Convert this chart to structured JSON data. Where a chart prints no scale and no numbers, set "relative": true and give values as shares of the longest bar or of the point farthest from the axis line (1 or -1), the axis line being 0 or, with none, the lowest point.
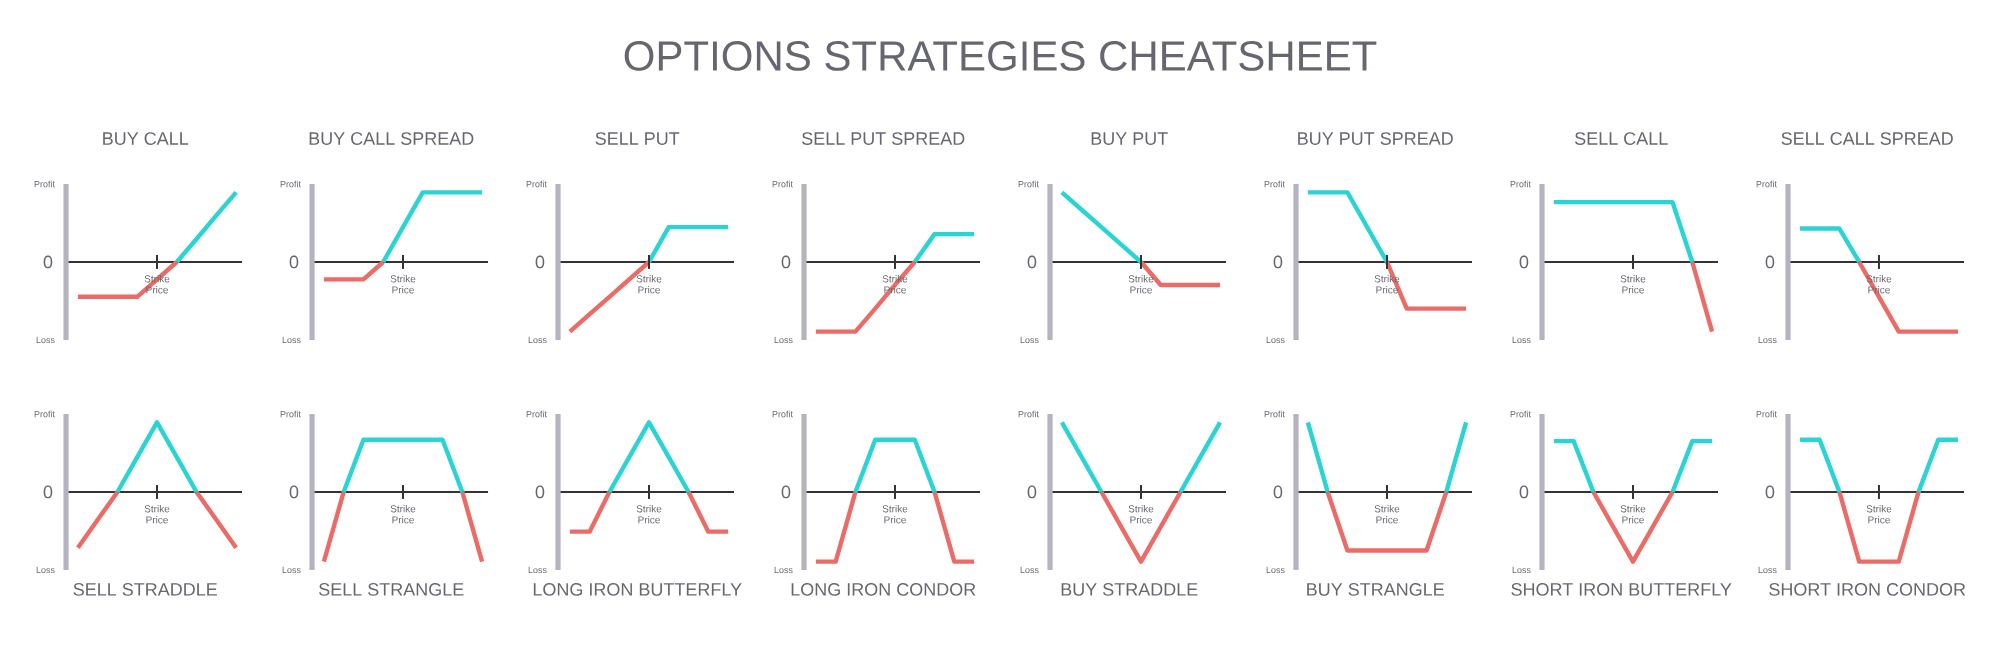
{
  "chart_data": [
    {
      "type": "other",
      "title": "OPTIONS STRATEGIES CHEATSHEET"
    },
    {
      "type": "line",
      "title": "BUY CALL",
      "relative": true,
      "categories": [
        null,
        null,
        null,
        null,
        null,
        null,
        null,
        null,
        null
      ],
      "annotations": [
        "Profit",
        "Loss",
        "0",
        "Strike Price"
      ],
      "series": [
        {
          "color": "#eb6b66",
          "values": [
            -0.5,
            -0.5,
            -0.5,
            -0.5,
            -0.25,
            0,
            null,
            null,
            null
          ]
        },
        {
          "color": "#2ad4d4",
          "values": [
            null,
            null,
            null,
            null,
            null,
            0,
            0.33,
            0.67,
            1
          ]
        }
      ]
    },
    {
      "type": "line",
      "title": "BUY CALL SPREAD",
      "relative": true,
      "categories": [
        null,
        null,
        null,
        null,
        null,
        null,
        null,
        null,
        null
      ],
      "annotations": [
        "Profit",
        "Loss",
        "0",
        "Strike Price"
      ],
      "series": [
        {
          "color": "#eb6b66",
          "values": [
            -0.25,
            -0.25,
            -0.25,
            0,
            null,
            null,
            null,
            null,
            null
          ]
        },
        {
          "color": "#2ad4d4",
          "values": [
            null,
            null,
            null,
            0,
            0.5,
            1,
            1,
            1,
            1
          ]
        }
      ]
    },
    {
      "type": "line",
      "title": "SELL PUT",
      "relative": true,
      "categories": [
        null,
        null,
        null,
        null,
        null,
        null,
        null,
        null,
        null
      ],
      "annotations": [
        "Profit",
        "Loss",
        "0",
        "Strike Price"
      ],
      "series": [
        {
          "color": "#eb6b66",
          "values": [
            -1,
            -0.75,
            -0.5,
            -0.25,
            0,
            null,
            null,
            null,
            null
          ]
        },
        {
          "color": "#2ad4d4",
          "values": [
            null,
            null,
            null,
            null,
            0,
            0.5,
            0.5,
            0.5,
            0.5
          ]
        }
      ]
    },
    {
      "type": "line",
      "title": "SELL PUT SPREAD",
      "relative": true,
      "categories": [
        null,
        null,
        null,
        null,
        null,
        null,
        null,
        null,
        null
      ],
      "annotations": [
        "Profit",
        "Loss",
        "0",
        "Strike Price"
      ],
      "series": [
        {
          "color": "#eb6b66",
          "values": [
            -1,
            -1,
            -1,
            -0.67,
            -0.33,
            0,
            null,
            null,
            null
          ]
        },
        {
          "color": "#2ad4d4",
          "values": [
            null,
            null,
            null,
            null,
            null,
            0,
            0.4,
            0.4,
            0.4
          ]
        }
      ]
    },
    {
      "type": "line",
      "title": "BUY PUT",
      "relative": true,
      "categories": [
        null,
        null,
        null,
        null,
        null,
        null,
        null,
        null,
        null
      ],
      "annotations": [
        "Profit",
        "Loss",
        "0",
        "Strike Price"
      ],
      "series": [
        {
          "color": "#2ad4d4",
          "values": [
            1,
            0.75,
            0.5,
            0.25,
            0,
            null,
            null,
            null,
            null
          ]
        },
        {
          "color": "#eb6b66",
          "values": [
            null,
            null,
            null,
            null,
            0,
            -0.33,
            -0.33,
            -0.33,
            -0.33
          ]
        }
      ]
    },
    {
      "type": "line",
      "title": "BUY PUT SPREAD",
      "relative": true,
      "categories": [
        null,
        null,
        null,
        null,
        null,
        null,
        null,
        null,
        null
      ],
      "annotations": [
        "Profit",
        "Loss",
        "0",
        "Strike Price"
      ],
      "series": [
        {
          "color": "#2ad4d4",
          "values": [
            1,
            1,
            1,
            0.5,
            0,
            null,
            null,
            null,
            null
          ]
        },
        {
          "color": "#eb6b66",
          "values": [
            null,
            null,
            null,
            null,
            0,
            -0.67,
            -0.67,
            -0.67,
            -0.67
          ]
        }
      ]
    },
    {
      "type": "line",
      "title": "SELL CALL",
      "relative": true,
      "categories": [
        null,
        null,
        null,
        null,
        null,
        null,
        null,
        null,
        null
      ],
      "annotations": [
        "Profit",
        "Loss",
        "0",
        "Strike Price"
      ],
      "series": [
        {
          "color": "#2ad4d4",
          "values": [
            0.86,
            0.86,
            0.86,
            0.86,
            0.86,
            0.86,
            0.86,
            0,
            null
          ]
        },
        {
          "color": "#eb6b66",
          "values": [
            null,
            null,
            null,
            null,
            null,
            null,
            null,
            0,
            -1
          ]
        }
      ]
    },
    {
      "type": "line",
      "title": "SELL CALL SPREAD",
      "relative": true,
      "categories": [
        null,
        null,
        null,
        null,
        null,
        null,
        null,
        null,
        null
      ],
      "annotations": [
        "Profit",
        "Loss",
        "0",
        "Strike Price"
      ],
      "series": [
        {
          "color": "#2ad4d4",
          "values": [
            0.48,
            0.48,
            0.48,
            0,
            null,
            null,
            null,
            null,
            null
          ]
        },
        {
          "color": "#eb6b66",
          "values": [
            null,
            null,
            null,
            0,
            -0.5,
            -1,
            -1,
            -1,
            -1
          ]
        }
      ]
    },
    {
      "type": "line",
      "title": "SELL STRADDLE",
      "relative": true,
      "categories": [
        null,
        null,
        null,
        null,
        null,
        null,
        null,
        null,
        null
      ],
      "annotations": [
        "Profit",
        "Loss",
        "0",
        "Strike Price"
      ],
      "series": [
        {
          "color": "#eb6b66",
          "values": [
            -0.8,
            -0.4,
            0,
            null,
            null,
            null,
            0,
            -0.4,
            -0.8
          ]
        },
        {
          "color": "#2ad4d4",
          "values": [
            null,
            null,
            0,
            0.5,
            1,
            0.5,
            0,
            null,
            null
          ]
        }
      ]
    },
    {
      "type": "line",
      "title": "SELL STRANGLE",
      "relative": true,
      "categories": [
        null,
        null,
        null,
        null,
        null,
        null,
        null,
        null,
        null
      ],
      "annotations": [
        "Profit",
        "Loss",
        "0",
        "Strike Price"
      ],
      "series": [
        {
          "color": "#eb6b66",
          "values": [
            -1,
            0,
            null,
            null,
            null,
            null,
            null,
            0,
            -1
          ]
        },
        {
          "color": "#2ad4d4",
          "values": [
            null,
            0,
            0.75,
            0.75,
            0.75,
            0.75,
            0.75,
            0,
            null
          ]
        }
      ]
    },
    {
      "type": "line",
      "title": "LONG IRON BUTTERFLY",
      "relative": true,
      "categories": [
        null,
        null,
        null,
        null,
        null,
        null,
        null,
        null,
        null
      ],
      "annotations": [
        "Profit",
        "Loss",
        "0",
        "Strike Price"
      ],
      "series": [
        {
          "color": "#eb6b66",
          "values": [
            -0.57,
            -0.57,
            0,
            null,
            null,
            null,
            0,
            -0.57,
            -0.57
          ]
        },
        {
          "color": "#2ad4d4",
          "values": [
            null,
            null,
            0,
            0.5,
            1,
            0.5,
            0,
            null,
            null
          ]
        }
      ]
    },
    {
      "type": "line",
      "title": "LONG IRON CONDOR",
      "relative": true,
      "categories": [
        null,
        null,
        null,
        null,
        null,
        null,
        null,
        null,
        null
      ],
      "annotations": [
        "Profit",
        "Loss",
        "0",
        "Strike Price"
      ],
      "series": [
        {
          "color": "#eb6b66",
          "values": [
            -1,
            -1,
            0,
            null,
            null,
            null,
            0,
            -1,
            -1
          ]
        },
        {
          "color": "#2ad4d4",
          "values": [
            null,
            null,
            0,
            0.75,
            0.75,
            0.75,
            0,
            null,
            null
          ]
        }
      ]
    },
    {
      "type": "line",
      "title": "BUY STRADDLE",
      "relative": true,
      "categories": [
        null,
        null,
        null,
        null,
        null,
        null,
        null,
        null,
        null
      ],
      "annotations": [
        "Profit",
        "Loss",
        "0",
        "Strike Price"
      ],
      "series": [
        {
          "color": "#2ad4d4",
          "values": [
            1,
            0.5,
            0,
            null,
            null,
            null,
            0,
            0.5,
            1
          ]
        },
        {
          "color": "#eb6b66",
          "values": [
            null,
            null,
            0,
            -0.5,
            -1,
            -0.5,
            0,
            null,
            null
          ]
        }
      ]
    },
    {
      "type": "line",
      "title": "BUY STRANGLE",
      "relative": true,
      "categories": [
        null,
        null,
        null,
        null,
        null,
        null,
        null,
        null,
        null
      ],
      "annotations": [
        "Profit",
        "Loss",
        "0",
        "Strike Price"
      ],
      "series": [
        {
          "color": "#2ad4d4",
          "values": [
            1,
            0,
            null,
            null,
            null,
            null,
            null,
            0,
            1
          ]
        },
        {
          "color": "#eb6b66",
          "values": [
            null,
            0,
            -0.84,
            -0.84,
            -0.84,
            -0.84,
            -0.84,
            0,
            null
          ]
        }
      ]
    },
    {
      "type": "line",
      "title": "SHORT IRON BUTTERFLY",
      "relative": true,
      "categories": [
        null,
        null,
        null,
        null,
        null,
        null,
        null,
        null,
        null
      ],
      "annotations": [
        "Profit",
        "Loss",
        "0",
        "Strike Price"
      ],
      "series": [
        {
          "color": "#2ad4d4",
          "values": [
            0.73,
            0.73,
            0,
            null,
            null,
            null,
            0,
            0.73,
            0.73
          ]
        },
        {
          "color": "#eb6b66",
          "values": [
            null,
            null,
            0,
            -0.5,
            -1,
            -0.5,
            0,
            null,
            null
          ]
        }
      ]
    },
    {
      "type": "line",
      "title": "SHORT IRON CONDOR",
      "relative": true,
      "categories": [
        null,
        null,
        null,
        null,
        null,
        null,
        null,
        null,
        null
      ],
      "annotations": [
        "Profit",
        "Loss",
        "0",
        "Strike Price"
      ],
      "series": [
        {
          "color": "#2ad4d4",
          "values": [
            0.75,
            0.75,
            0,
            null,
            null,
            null,
            0,
            0.75,
            0.75
          ]
        },
        {
          "color": "#eb6b66",
          "values": [
            null,
            null,
            0,
            -1,
            -1,
            -1,
            0,
            null,
            null
          ]
        }
      ]
    }
  ]
}
